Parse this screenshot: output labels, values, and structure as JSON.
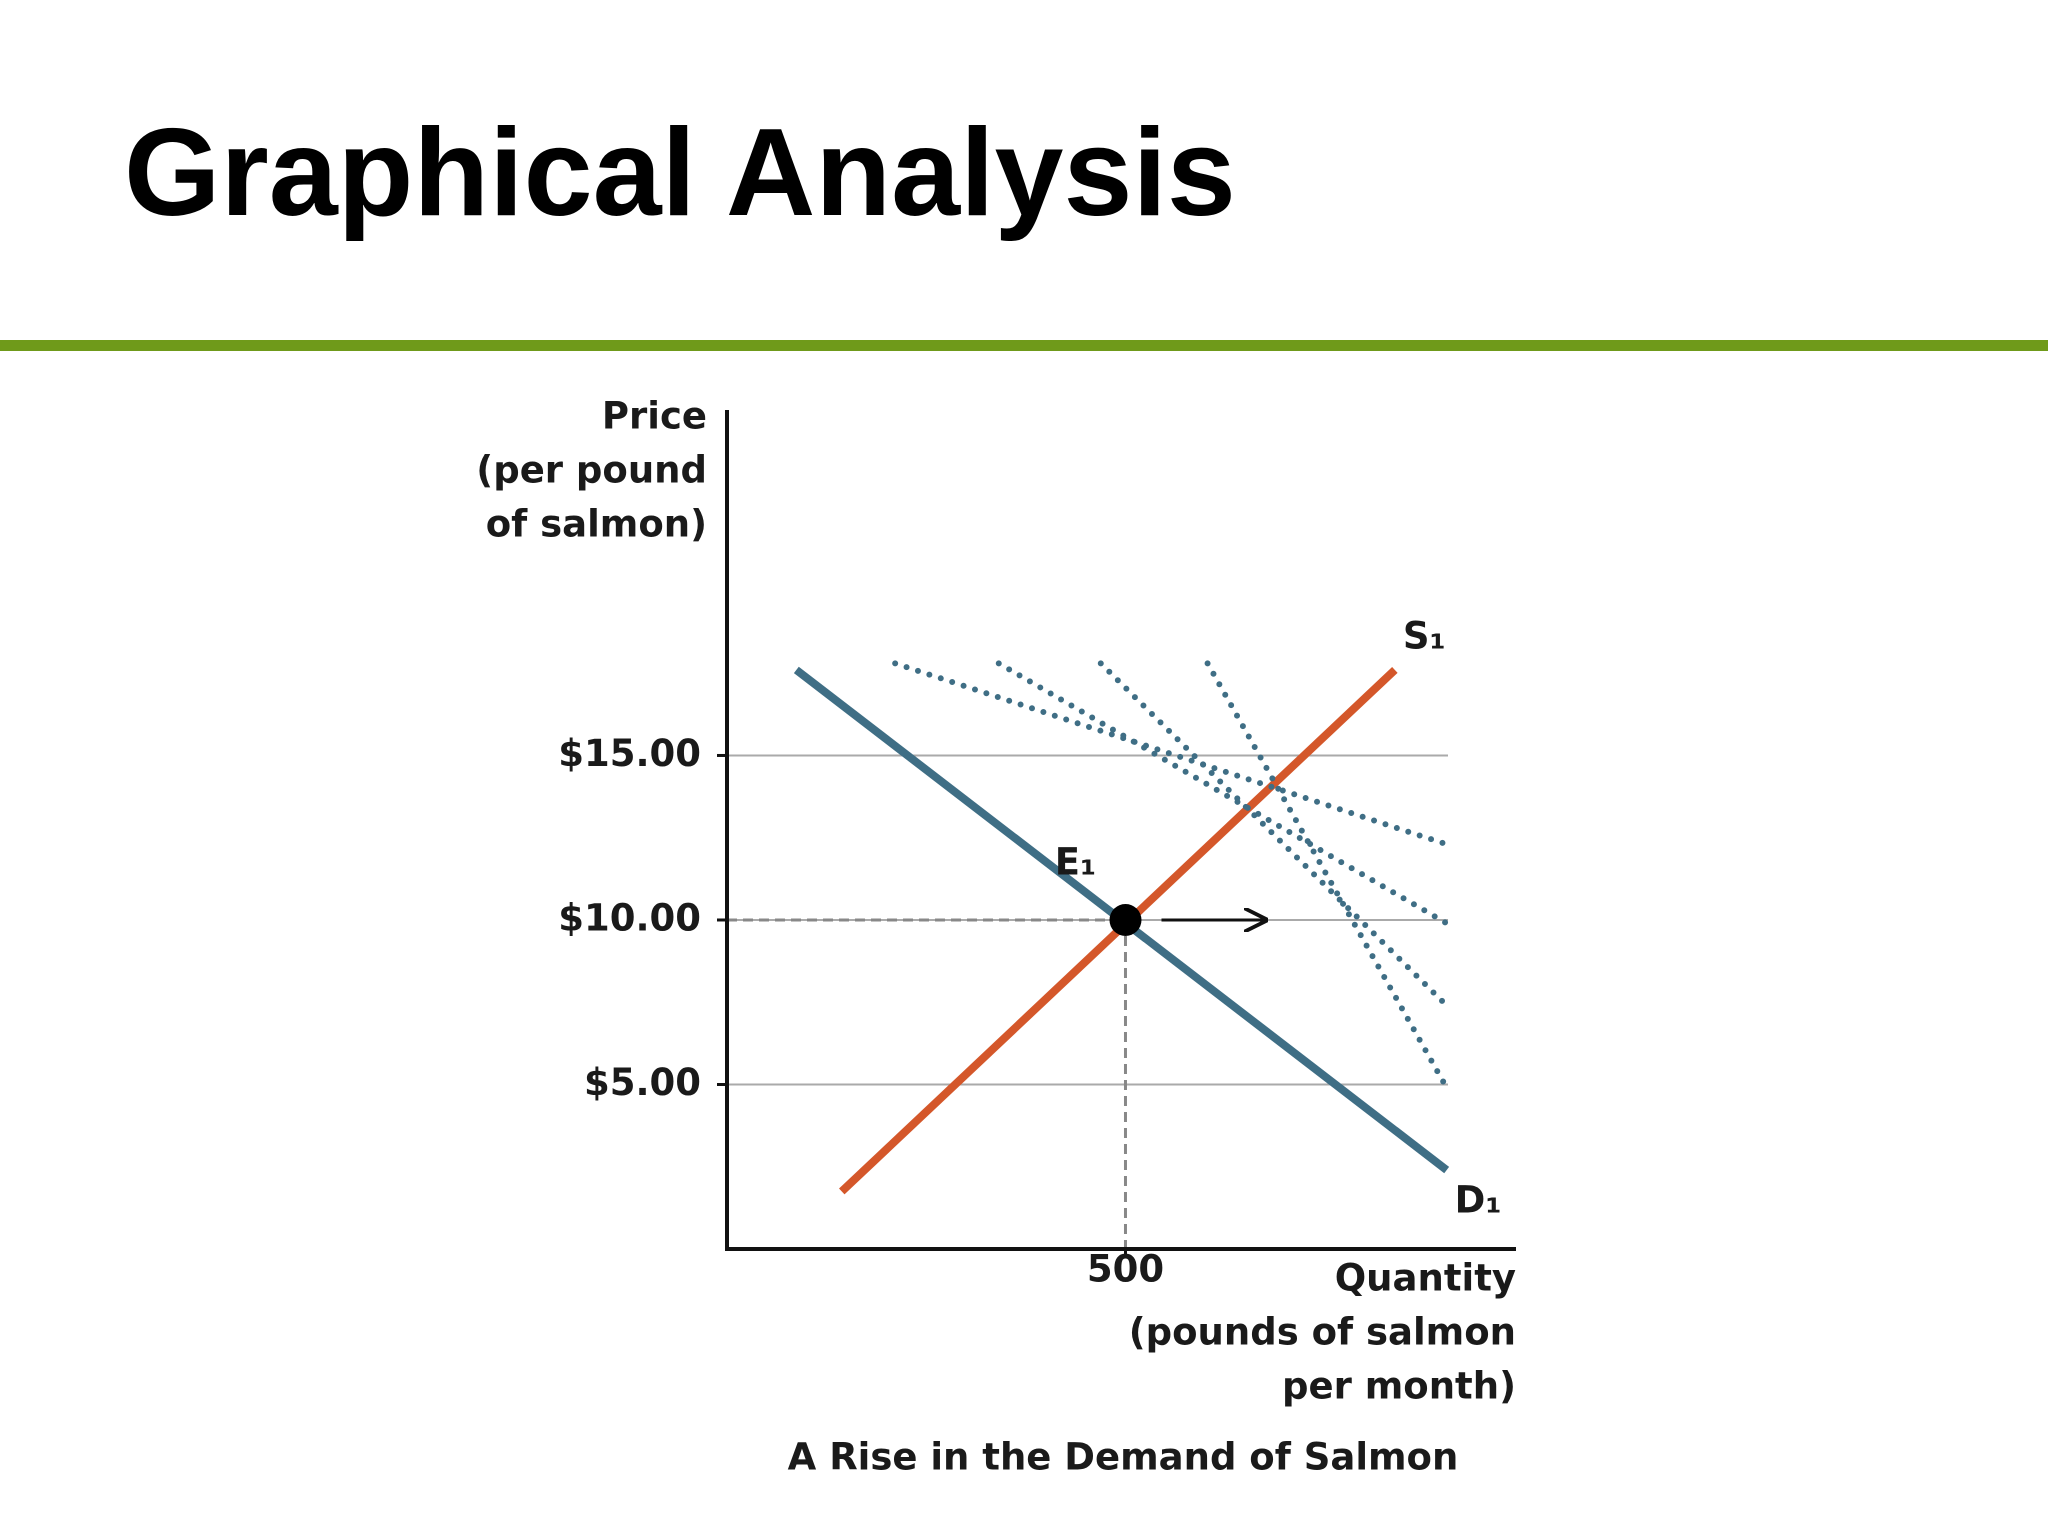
{
  "title": "Graphical Analysis",
  "chart_data": {
    "type": "line",
    "caption": "A Rise in the Demand of Salmon",
    "y_label": [
      "Price",
      "(per pound",
      "of salmon)"
    ],
    "x_label": [
      "Quantity",
      "(pounds of salmon",
      "per month)"
    ],
    "xlim": [
      0,
      990
    ],
    "ylim": [
      0,
      25.5
    ],
    "xticks": [
      500
    ],
    "yticks": [
      {
        "value": 5,
        "label": "$5.00"
      },
      {
        "value": 10,
        "label": "$10.00"
      },
      {
        "value": 15,
        "label": "$15.00"
      }
    ],
    "grid": true,
    "series": [
      {
        "name": "S₁",
        "color": "#d4572a",
        "x": [
          144,
          838
        ],
        "values": [
          1.75,
          17.6
        ]
      },
      {
        "name": "D₁",
        "color": "#3f6e85",
        "x": [
          87,
          903
        ],
        "values": [
          17.6,
          2.4
        ]
      },
      {
        "color": "#3f6e85",
        "style": "dotted",
        "x": [
          211,
          903
        ],
        "values": [
          17.8,
          12.3
        ]
      },
      {
        "color": "#3f6e85",
        "style": "dotted",
        "x": [
          341,
          903
        ],
        "values": [
          17.8,
          9.9
        ]
      },
      {
        "color": "#3f6e85",
        "style": "dotted",
        "x": [
          469,
          903
        ],
        "values": [
          17.8,
          7.4
        ]
      },
      {
        "color": "#3f6e85",
        "style": "dotted",
        "x": [
          603,
          903
        ],
        "values": [
          17.8,
          4.9
        ]
      }
    ],
    "point": {
      "label": "E₁",
      "x": 500,
      "y": 10
    }
  }
}
